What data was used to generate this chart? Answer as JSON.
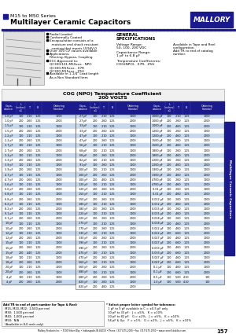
{
  "title_line1": "M15 to M50 Series",
  "title_line2": "Multilayer Ceramic Capacitors",
  "brand": "MALLORY",
  "header_bg": "#1a1a8c",
  "table_header_bg": "#1a1a8c",
  "row_alt1": "#c8d8ec",
  "row_alt2": "#ffffff",
  "page_number": "157",
  "sidebar_text": "Multilayer Ceramic Capacitors",
  "sidebar_bg": "#1a1a8c",
  "background": "#ffffff",
  "dot_color": "#1a1a8c",
  "col1_data": [
    [
      "1.0 pF",
      "100",
      ".210",
      "1.25",
      "1000",
      "M15CG1R0*T2"
    ],
    [
      "1.0 pF",
      "200",
      ".260",
      "1.25",
      "2000",
      "M20CG1R0*T2"
    ],
    [
      "1.5 pF",
      "100",
      ".210",
      "1.25",
      "1000",
      "M15CG1R5*T2"
    ],
    [
      "1.5 pF",
      "200",
      ".260",
      "1.25",
      "2000",
      "M20CG1R5*T2"
    ],
    [
      "2.2 pF",
      "100",
      ".210",
      "1.25",
      "1000",
      "M15CG2R2*T2"
    ],
    [
      "2.2 pF",
      "200",
      ".260",
      "1.25",
      "2000",
      "M20CG2R2*T2"
    ],
    [
      "2.7 pF",
      "100",
      ".210",
      "1.25",
      "1000",
      "M15CG2R7*T2"
    ],
    [
      "2.7 pF",
      "200",
      ".260",
      "1.25",
      "2000",
      "M20CG2R7*T2"
    ],
    [
      "3.3 pF",
      "100",
      ".210",
      "1.25",
      "1000",
      "M15CG3R3*T2"
    ],
    [
      "3.3 pF",
      "200",
      ".260",
      "1.25",
      "2000",
      "M20CG3R3*T2"
    ],
    [
      "3.9 pF",
      "100",
      ".210",
      "1.25",
      "1000",
      "M15CG3R9*T2"
    ],
    [
      "3.9 pF",
      "200",
      ".260",
      "1.25",
      "2000",
      "M20CG3R9*T2"
    ],
    [
      "4.7 pF",
      "100",
      ".210",
      "1.25",
      "1000",
      "M15CG4R7*T2"
    ],
    [
      "4.7 pF",
      "200",
      ".260",
      "1.25",
      "2000",
      "M20CG4R7*T2"
    ],
    [
      "5.6 pF",
      "100",
      ".210",
      "1.25",
      "1000",
      "M15CG5R6*T2"
    ],
    [
      "5.6 pF",
      "200",
      ".260",
      "1.25",
      "2000",
      "M20CG5R6*T2"
    ],
    [
      "6.8 pF",
      "100",
      ".210",
      "1.25",
      "1000",
      "M15CG6R8*T2"
    ],
    [
      "6.8 pF",
      "200",
      ".260",
      "1.25",
      "2000",
      "M20CG6R8*T2"
    ],
    [
      "8.2 pF",
      "100",
      ".210",
      "1.25",
      "1000",
      "M15CG8R2*T2"
    ],
    [
      "8.2 pF",
      "200",
      ".260",
      "1.25",
      "2000",
      "M20CG8R2*T2"
    ],
    [
      "9.1 pF",
      "100",
      ".210",
      "1.25",
      "1000",
      "M15CG9R1*T2"
    ],
    [
      "9.1 pF",
      "200",
      ".260",
      "1.25",
      "2000",
      "M20CG9R1*T2"
    ],
    [
      "10 pF",
      "100",
      ".210",
      "1.25",
      "1000",
      "M15CG100*T2"
    ],
    [
      "10 pF",
      "200",
      ".260",
      "1.25",
      "2000",
      "M20CG100*T2"
    ],
    [
      "12 pF",
      "100",
      ".210",
      "1.25",
      "1000",
      "M15CG120*T2"
    ],
    [
      "12 pF",
      "200",
      ".260",
      "1.25",
      "2000",
      "M20CG120*T2"
    ],
    [
      "15 pF",
      "100",
      ".210",
      "1.25",
      "1000",
      "M15CG150*T2"
    ],
    [
      "15 pF",
      "200",
      ".260",
      "1.25",
      "2000",
      "M20CG150*T2"
    ],
    [
      "15 pF",
      "200",
      ".440",
      "1.25",
      "2000",
      "M22CG150*T2"
    ],
    [
      "18 pF",
      "100",
      ".210",
      "1.25",
      "1000",
      "M15CG180*T2"
    ],
    [
      "18 pF",
      "200",
      ".260",
      "1.25",
      "2000",
      "M20CG180*T2"
    ],
    [
      "20 pF",
      "100",
      ".210",
      "1.25",
      "1000",
      "M15CG200*T2"
    ],
    [
      "20 pF",
      "200",
      ".260",
      "1.25",
      "1000",
      "M20CG200*T2"
    ],
    [
      "4 pF",
      "100",
      ".210",
      "1.25",
      "1000",
      "M15CG040*T2"
    ],
    [
      "4 pF",
      "200",
      ".260",
      "1.25",
      "2000",
      "M20CG040*T2"
    ]
  ],
  "col2_data": [
    [
      "27 pF",
      "100",
      ".210",
      "1.25",
      "1000",
      "M15CG270*T2"
    ],
    [
      "27 pF",
      "200",
      ".260",
      "1.25",
      "2000",
      "M20CG270*T2"
    ],
    [
      "33 pF",
      "100",
      ".210",
      "1.25",
      "1000",
      "M15CG330*T2"
    ],
    [
      "33 pF",
      "200",
      ".260",
      "1.25",
      "2000",
      "M20CG330*T2"
    ],
    [
      "47 pF",
      "100",
      ".210",
      "1.25",
      "1000",
      "M15CG470*T2"
    ],
    [
      "47 pF",
      "200",
      ".260",
      "1.25",
      "2000",
      "M20CG470*T2"
    ],
    [
      "56 pF",
      "100",
      ".210",
      "1.25",
      "1000",
      "M15CG560*T2"
    ],
    [
      "68 pF",
      "100",
      ".210",
      "1.25",
      "1000",
      "M15CG680*T2"
    ],
    [
      "68 pF",
      "200",
      ".260",
      "1.25",
      "2000",
      "M20CG680*T2"
    ],
    [
      "82 pF",
      "100",
      ".210",
      "1.25",
      "1000",
      "M15CG820*T2"
    ],
    [
      "91 pF",
      "100",
      ".260",
      "1.25",
      "1000",
      "M15CG910*T2"
    ],
    [
      "100 pF",
      "100",
      ".210",
      "1.25",
      "1000",
      "M15CG101*T2"
    ],
    [
      "100 pF",
      "200",
      ".260",
      "1.25",
      "2000",
      "M20CG101*T2"
    ],
    [
      "100 pF",
      "200",
      ".460",
      "1.25",
      "2000",
      "M30CG101*T2"
    ],
    [
      "120 pF",
      "100",
      ".210",
      "1.25",
      "1000",
      "M15CG121*T2"
    ],
    [
      "120 pF",
      "200",
      ".260",
      "1.25",
      "2000",
      "M20CG121*T2"
    ],
    [
      "150 pF",
      "100",
      ".210",
      "1.25",
      "1000",
      "M15CG151*T2"
    ],
    [
      "150 pF",
      "200",
      ".260",
      "1.25",
      "2000",
      "M20CG151*T2"
    ],
    [
      "180 pF",
      "100",
      ".210",
      "1.25",
      "1000",
      "M15CG181*T2"
    ],
    [
      "180 pF",
      "200",
      ".260",
      "1.25",
      "2000",
      "M20CG181*T2"
    ],
    [
      "220 pF",
      "100",
      ".210",
      "1.25",
      "1000",
      "M15CG221*T2"
    ],
    [
      "220 pF",
      "200",
      ".260",
      "1.25",
      "2000",
      "M20CG221*T2"
    ],
    [
      "270 pF",
      "100",
      ".210",
      "1.25",
      "1000",
      "M15CG271*T2"
    ],
    [
      "270 pF",
      "200",
      ".260",
      "1.25",
      "2000",
      "M20CG271*T2"
    ],
    [
      "330 pF",
      "100",
      ".210",
      "1.25",
      "1000",
      "M15CG331*T2"
    ],
    [
      "330 pF",
      "200",
      ".260",
      "1.25",
      "2000",
      "M20CG331*T2"
    ],
    [
      "390 pF",
      "100",
      ".210",
      "1.25",
      "1000",
      "M15CG391*T2"
    ],
    [
      "390 pF",
      "200",
      ".260",
      "1.25",
      "2000",
      "M20CG391*T2"
    ],
    [
      "470 pF",
      "100",
      ".210",
      "1.25",
      "1000",
      "M15CG471*T2"
    ],
    [
      "470 pF",
      "200",
      ".260",
      "1.25",
      "2000",
      "M20CG471*T2"
    ],
    [
      "560 pF",
      "100",
      ".210",
      "1.25",
      "1000",
      "M15CG561*T2"
    ],
    [
      "560 pF",
      "200",
      ".260",
      "1.25",
      "2000",
      "M20CG561*T2"
    ],
    [
      "680 pF",
      "100",
      ".210",
      "1.25",
      "1000",
      "M15CG681*T2"
    ],
    [
      "680 pF",
      "200",
      ".260",
      "1.25",
      "2000",
      "M20CG681*T2"
    ],
    [
      "820 pF",
      "100",
      ".260",
      "1.25",
      "1000",
      "M15CG821*T2"
    ],
    [
      "820 pF",
      "200",
      ".460",
      "1.25",
      "2000",
      "M30CG821*T2"
    ]
  ],
  "col3_data": [
    [
      "1000 pF",
      "100",
      ".210",
      "1.25",
      "1000",
      "M15CG102*T2"
    ],
    [
      "1000 pF",
      "200",
      ".260",
      "1.25",
      "2000",
      "M20CG102*T2"
    ],
    [
      "1000 pF",
      "200",
      ".460",
      "1.25",
      "2000",
      "M30CG102*T2"
    ],
    [
      "1200 pF",
      "100",
      ".260",
      "1.25",
      "1000",
      "M15CG122*T2"
    ],
    [
      "1200 pF",
      "200",
      ".460",
      "1.25",
      "2000",
      "M30CG122*T2"
    ],
    [
      "1500 pF",
      "100",
      ".260",
      "1.25",
      "1000",
      "M15CG152*T2"
    ],
    [
      "1500 pF",
      "200",
      ".460",
      "1.25",
      "2000",
      "M30CG152*T2"
    ],
    [
      "1800 pF",
      "100",
      ".260",
      "1.25",
      "1000",
      "M15CG182*T2"
    ],
    [
      "1800 pF",
      "200",
      ".460",
      "1.25",
      "2000",
      "M30CG182*T2"
    ],
    [
      "2200 pF",
      "100",
      ".260",
      "1.25",
      "1000",
      "M15CG222*T2"
    ],
    [
      "2200 pF",
      "200",
      ".460",
      "1.25",
      "2000",
      "M30CG222*T2"
    ],
    [
      "3300 pF",
      "100",
      ".260",
      "1.25",
      "1000",
      "M15CG332*T2"
    ],
    [
      "3300 pF",
      "200",
      ".460",
      "1.25",
      "2000",
      "M30CG332*T2"
    ],
    [
      "4700 pF",
      "100",
      ".260",
      "1.25",
      "1000",
      "M15CG472*T2"
    ],
    [
      "4700 pF",
      "200",
      ".460",
      "1.25",
      "2000",
      "M30CG472*T2"
    ],
    [
      "0.01 μF",
      "100",
      ".260",
      "1.25",
      "1000",
      "M15CG103*T2"
    ],
    [
      "0.01 μF",
      "200",
      ".460",
      "1.25",
      "2000",
      "M30CG103*T2"
    ],
    [
      "0.012 μF",
      "100",
      ".260",
      "1.25",
      "1000",
      "M15CG123*T2"
    ],
    [
      "0.012 μF",
      "200",
      ".460",
      "1.25",
      "2000",
      "M30CG123*T2"
    ],
    [
      "0.015 μF",
      "100",
      ".260",
      "1.25",
      "1000",
      "M15CG153*T2"
    ],
    [
      "0.015 μF",
      "200",
      ".460",
      "1.25",
      "2000",
      "M30CG153*T2"
    ],
    [
      "0.018 μF",
      "100",
      ".260",
      "1.25",
      "1000",
      "M15CG183*T2"
    ],
    [
      "0.018 μF",
      "200",
      ".460",
      "1.25",
      "2000",
      "M30CG183*T2"
    ],
    [
      "0.022 μF",
      "100",
      ".460",
      "1.25",
      "1000",
      "M30CG223*T2"
    ],
    [
      "0.022 μF",
      "200",
      ".660",
      "1.25",
      "2000",
      "M40CG223*T2"
    ],
    [
      "0.027 μF",
      "100",
      ".460",
      "1.25",
      "1000",
      "M30CG273*T2"
    ],
    [
      "0.027 μF",
      "200",
      ".660",
      "1.25",
      "2000",
      "M40CG273*T2"
    ],
    [
      "0.033 μF",
      "100",
      ".460",
      "1.25",
      "1000",
      "M30CG333*T2"
    ],
    [
      "0.033 μF",
      "200",
      ".660",
      "1.25",
      "2000",
      "M40CG333*T2"
    ],
    [
      "0.047 μF",
      "100",
      ".460",
      "1.25",
      "1000",
      "M30CG473*T2"
    ],
    [
      "0.047 μF",
      "200",
      ".660",
      "1.25",
      "2000",
      "M40CG473*T2"
    ],
    [
      "0.1 μF",
      "100",
      ".460",
      "1.25",
      "1000",
      "M30CG104*T2"
    ],
    [
      "0.1 μF",
      "200",
      ".660",
      "1.25",
      "2000",
      "M40CG104*T2"
    ],
    [
      "0.5 μF",
      "100",
      ".500",
      "4.10",
      "100",
      "M50CG474*T2"
    ],
    [
      "1.0 μF",
      "100",
      ".500",
      "4.10",
      "100",
      "M50CG105*T2"
    ]
  ],
  "footer_notes_left": [
    "Add TR to end of part number for Tape & Reel:",
    "  M15, M20, M22:  2,500 per reel",
    "  M30:  1,500 per reel",
    "  M40:  1,000 per reel",
    "  M50:  N/A",
    "  (Available in 8,0 reels only)"
  ],
  "footer_notes_right": [
    "* Select proper letter symbol for tolerance:",
    "  1 pF to 9 pF available in C = ±0.5 pF only",
    "  10 pF to 33 pF:   J = ±5%,   K = ±10%",
    "  20 pF to 82 pF:   G = ±2%,   J = ±5%,   K = ±10%",
    "  56 pF & Up:   F = ±1%,   G = ±2%,   J = ±5%,   K = ±10%"
  ],
  "footer_line": "Mallory Products Inc. • 5100 Silver Way • Indianapolis IN 46218 • Phone: (317)275-2000 • Fax: (317)275-2550 • www.cornell-dubilier.com"
}
